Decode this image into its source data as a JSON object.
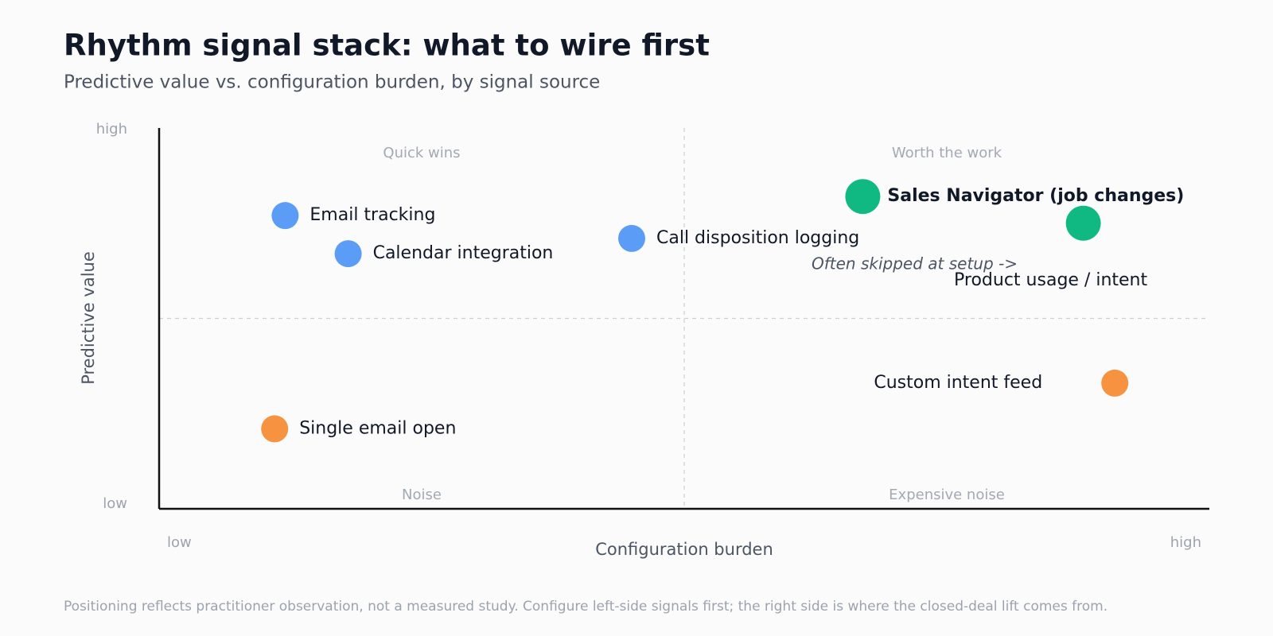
{
  "chart_data": {
    "type": "scatter",
    "title": "Rhythm signal stack: what to wire first",
    "subtitle": "Predictive value vs. configuration burden, by signal source",
    "x_label": "Configuration burden",
    "y_label": "Predictive value",
    "xlim": [
      0,
      10
    ],
    "ylim": [
      0,
      10
    ],
    "xticks": [
      {
        "value": 0,
        "label": "low"
      },
      {
        "value": 10,
        "label": "high"
      }
    ],
    "yticks": [
      {
        "value": 0,
        "label": "low"
      },
      {
        "value": 10,
        "label": "high"
      }
    ],
    "dividers": {
      "x": 5,
      "y": 5
    },
    "quadrants": [
      "Quick wins",
      "Worth the work",
      "Noise",
      "Expensive noise"
    ],
    "points": [
      {
        "name": "Email tracking",
        "x": 1.2,
        "y": 7.7,
        "color": "#5b9cf6"
      },
      {
        "name": "Calendar integration",
        "x": 1.8,
        "y": 6.7,
        "color": "#5b9cf6"
      },
      {
        "name": "Call disposition logging",
        "x": 4.5,
        "y": 7.1,
        "color": "#5b9cf6"
      },
      {
        "name": "Sales Navigator (job changes)",
        "x": 6.7,
        "y": 8.2,
        "color": "#10b981",
        "emphasis": true
      },
      {
        "name": "Product usage / intent",
        "x": 8.8,
        "y": 7.5,
        "color": "#10b981",
        "emphasis": true
      },
      {
        "name": "Custom intent feed",
        "x": 9.1,
        "y": 3.3,
        "color": "#f79240"
      },
      {
        "name": "Single email open",
        "x": 1.1,
        "y": 2.1,
        "color": "#f79240"
      }
    ],
    "annotation": "Often skipped at setup ->",
    "footnote": "Positioning reflects practitioner observation, not a measured study. Configure left-side signals first; the right side is where the closed-deal lift comes from."
  }
}
